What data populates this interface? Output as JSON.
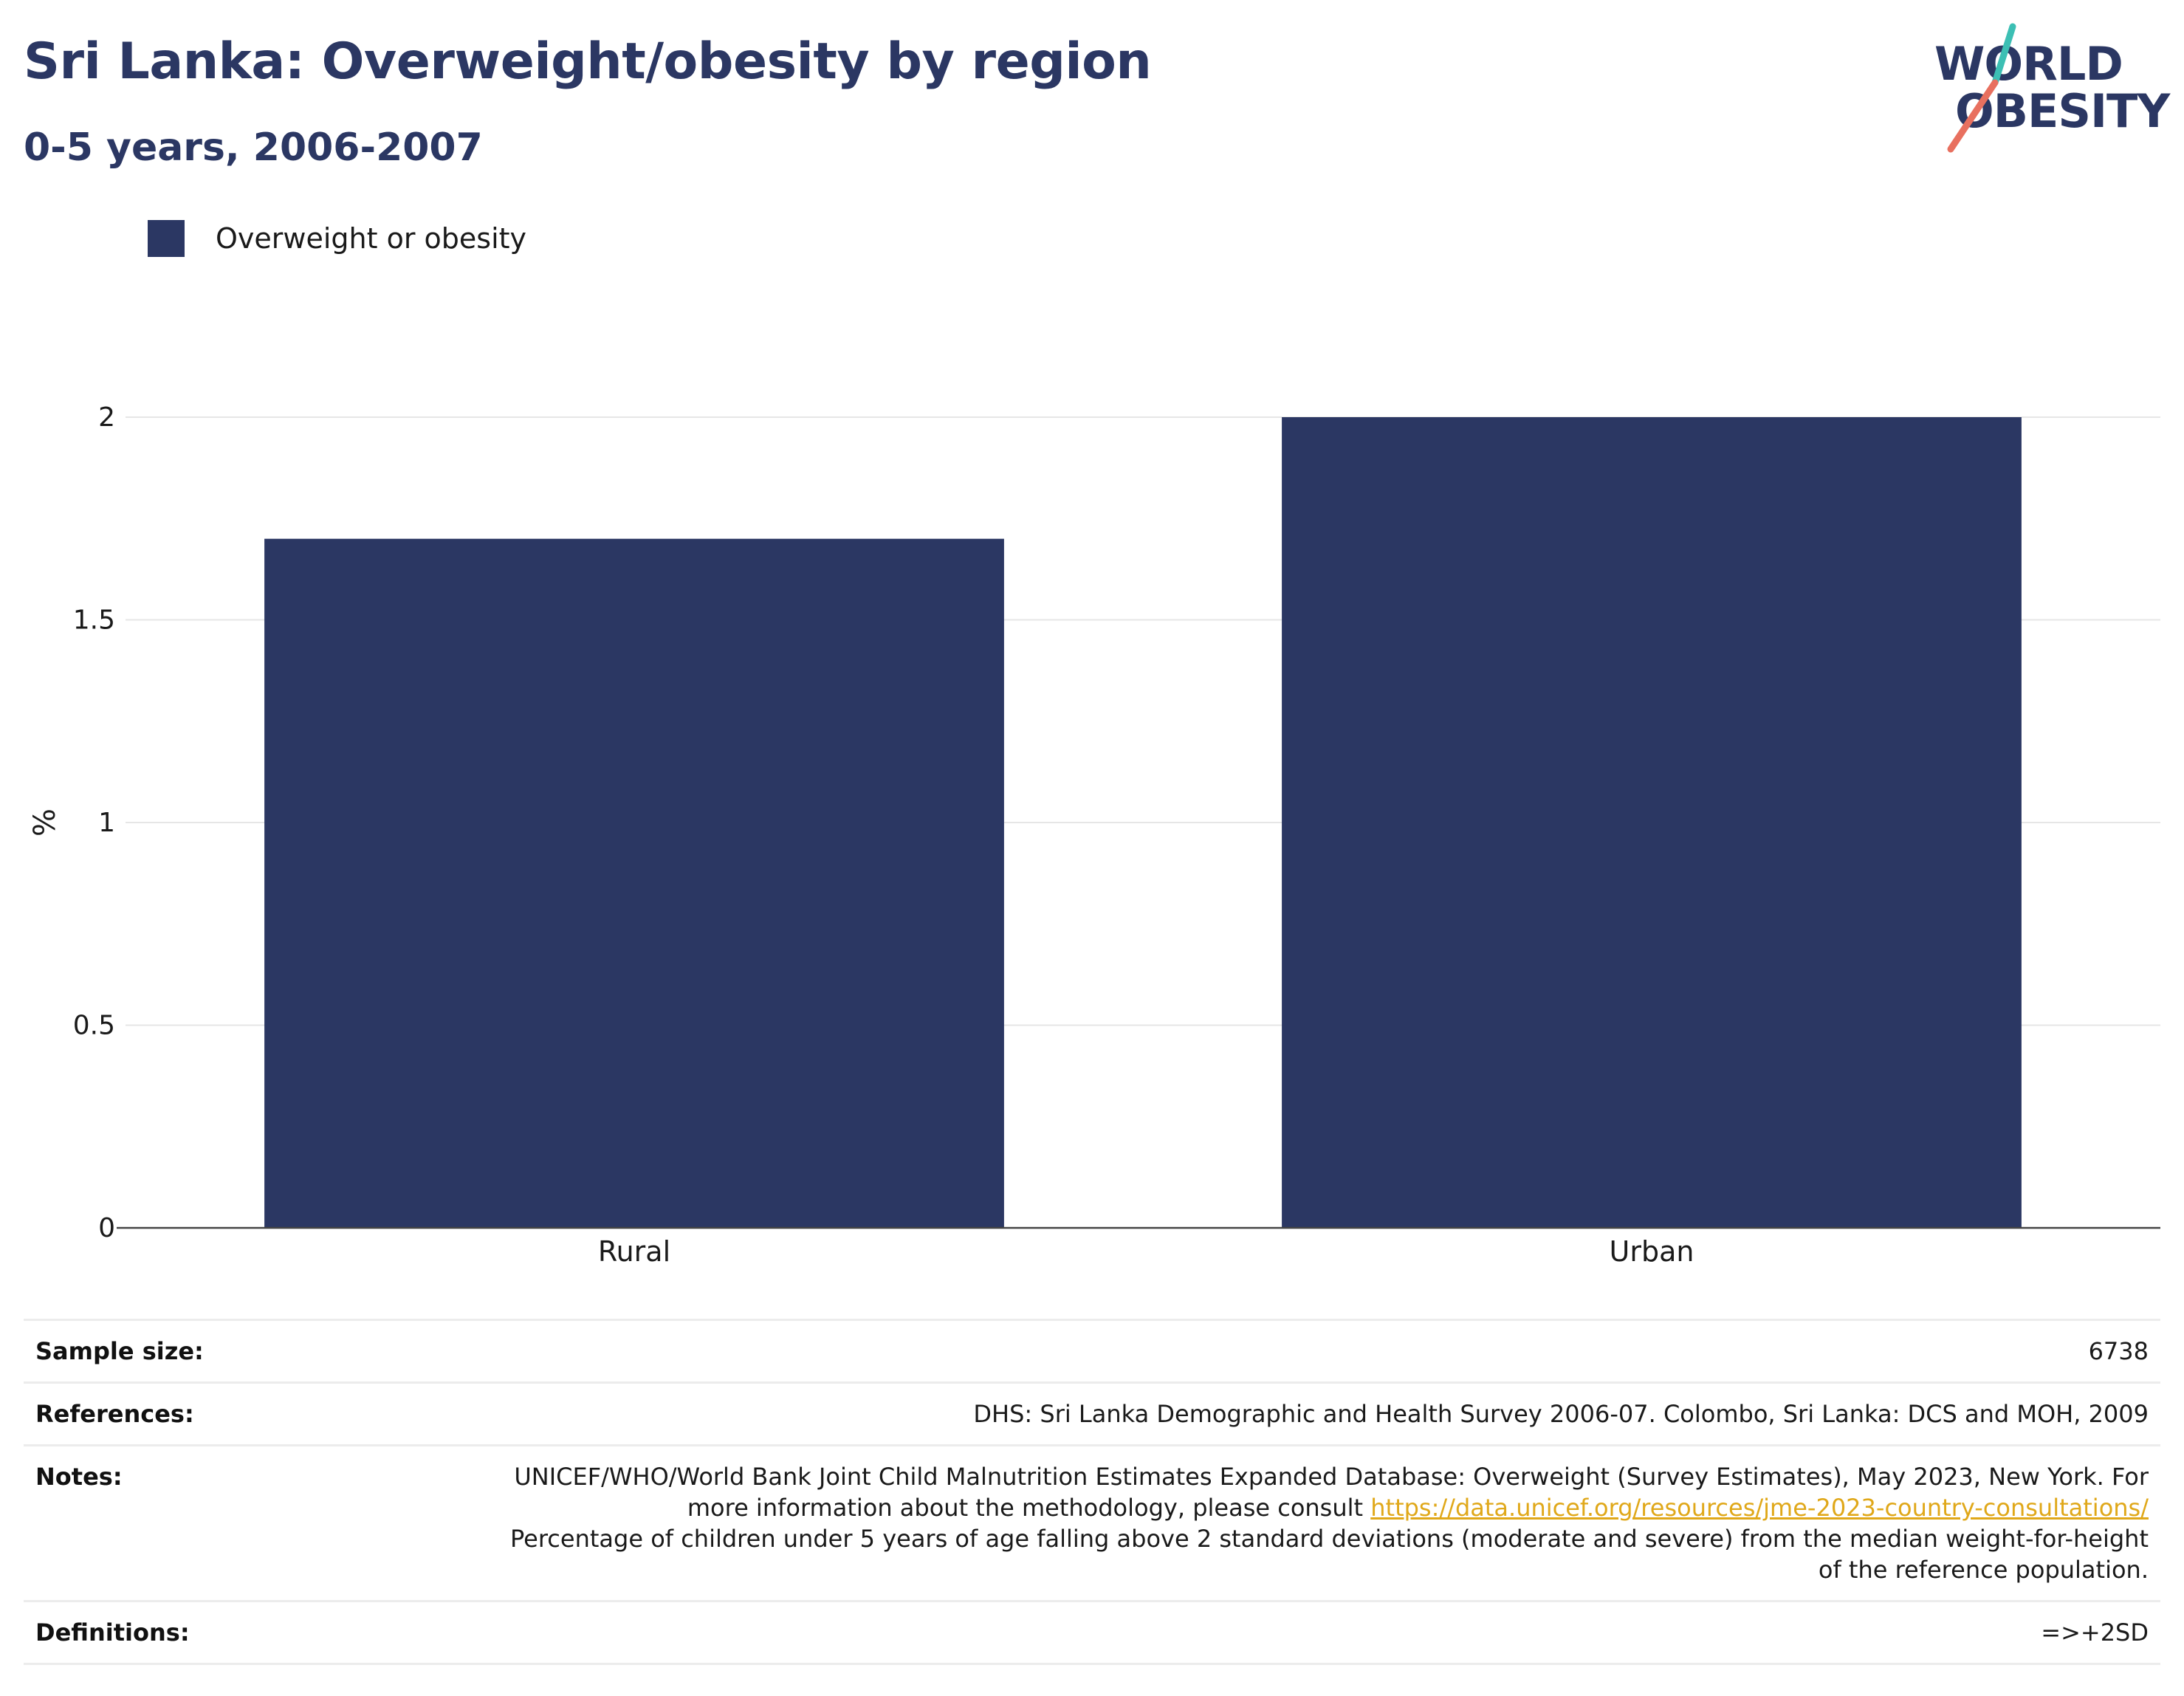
{
  "header": {
    "title": "Sri Lanka: Overweight/obesity by region",
    "subtitle": "0-5 years, 2006-2007"
  },
  "logo": {
    "line1": "WORLD",
    "line2": "OBESITY",
    "colors": {
      "text": "#2b3763",
      "accent_teal": "#3cbfb4",
      "accent_coral": "#e8705f"
    }
  },
  "legend": {
    "label": "Overweight or obesity",
    "color": "#2b3763"
  },
  "chart_data": {
    "type": "bar",
    "categories": [
      "Rural",
      "Urban"
    ],
    "series": [
      {
        "name": "Overweight or obesity",
        "values": [
          1.7,
          2.0
        ],
        "color": "#2b3763"
      }
    ],
    "ylabel": "%",
    "xlabel": "",
    "ylim": [
      0,
      2
    ],
    "yticks": [
      0,
      0.5,
      1,
      1.5,
      2
    ],
    "ytick_labels": [
      "0",
      "0.5",
      "1",
      "1.5",
      "2"
    ],
    "grid": true,
    "legend_position": "top-left"
  },
  "info": {
    "sample_size": {
      "label": "Sample size:",
      "value": "6738"
    },
    "references": {
      "label": "References:",
      "value": "DHS: Sri Lanka Demographic and Health Survey 2006-07. Colombo, Sri Lanka: DCS and MOH, 2009"
    },
    "notes": {
      "label": "Notes:",
      "text1": "UNICEF/WHO/World Bank Joint Child Malnutrition Estimates Expanded Database: Overweight (Survey Estimates), May 2023, New York. For more information about the methodology, please consult ",
      "link": "https://data.unicef.org/resources/jme-2023-country-consultations/",
      "text2": "Percentage of children under 5 years of age falling above 2 standard deviations (moderate and severe) from the median weight-for-height of the reference population."
    },
    "definitions": {
      "label": "Definitions:",
      "value": "=>+2SD"
    }
  }
}
